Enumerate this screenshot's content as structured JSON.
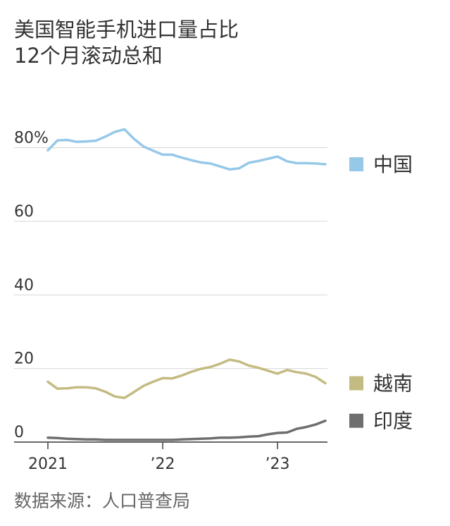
{
  "chart_data": {
    "type": "line",
    "title": [
      "美国智能手机进口量占比",
      "12个月滚动总和"
    ],
    "x": [
      "2021-01",
      "2021-02",
      "2021-03",
      "2021-04",
      "2021-05",
      "2021-06",
      "2021-07",
      "2021-08",
      "2021-09",
      "2021-10",
      "2021-11",
      "2021-12",
      "2022-01",
      "2022-02",
      "2022-03",
      "2022-04",
      "2022-05",
      "2022-06",
      "2022-07",
      "2022-08",
      "2022-09",
      "2022-10",
      "2022-11",
      "2022-12",
      "2023-01",
      "2023-02",
      "2023-03",
      "2023-04",
      "2023-05",
      "2023-06"
    ],
    "x_tick_labels": [
      {
        "at": "2021-01",
        "label": "2021"
      },
      {
        "at": "2022-01",
        "label": "’22"
      },
      {
        "at": "2023-01",
        "label": "’23"
      }
    ],
    "y_tick_labels": [
      {
        "value": 80,
        "label": "80%"
      },
      {
        "value": 60,
        "label": "60"
      },
      {
        "value": 40,
        "label": "40"
      },
      {
        "value": 20,
        "label": "20"
      },
      {
        "value": 0,
        "label": "0"
      }
    ],
    "ylim": [
      0,
      90
    ],
    "grid": true,
    "xlabel": "",
    "ylabel": "",
    "series": [
      {
        "name": "中国",
        "color": "#96c8e8",
        "values": [
          79.3,
          82.0,
          82.1,
          81.6,
          81.7,
          81.9,
          83.0,
          84.3,
          85.0,
          82.4,
          80.3,
          79.2,
          78.1,
          78.1,
          77.3,
          76.6,
          76.0,
          75.7,
          74.9,
          74.1,
          74.4,
          75.9,
          76.4,
          77.0,
          77.6,
          76.3,
          75.8,
          75.8,
          75.7,
          75.5
        ]
      },
      {
        "name": "越南",
        "color": "#c4bb82",
        "values": [
          16.4,
          14.5,
          14.6,
          14.9,
          14.9,
          14.6,
          13.7,
          12.4,
          12.0,
          13.6,
          15.3,
          16.4,
          17.4,
          17.3,
          18.1,
          19.1,
          19.9,
          20.4,
          21.3,
          22.4,
          21.9,
          20.8,
          20.2,
          19.4,
          18.6,
          19.6,
          19.0,
          18.6,
          17.7,
          16.0
        ]
      },
      {
        "name": "印度",
        "color": "#6e6e6e",
        "values": [
          1.2,
          1.1,
          0.9,
          0.8,
          0.7,
          0.7,
          0.6,
          0.6,
          0.6,
          0.6,
          0.6,
          0.6,
          0.6,
          0.6,
          0.7,
          0.8,
          0.9,
          1.0,
          1.2,
          1.2,
          1.3,
          1.5,
          1.6,
          2.1,
          2.5,
          2.6,
          3.6,
          4.1,
          4.8,
          5.8
        ]
      }
    ]
  },
  "source": "数据来源：人口普查局"
}
